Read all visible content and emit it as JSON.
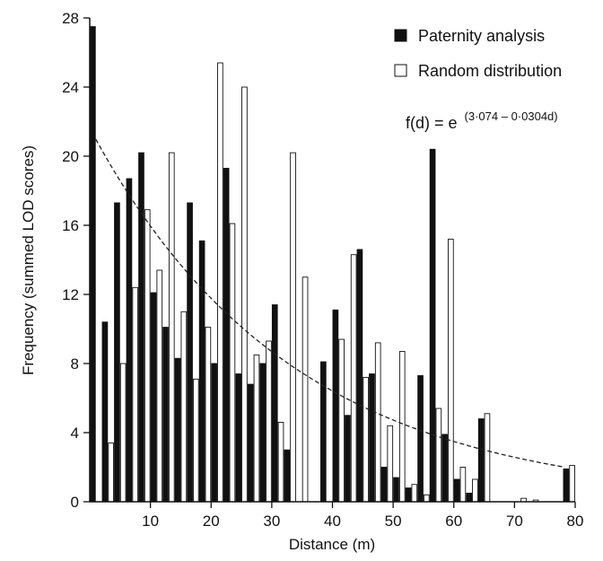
{
  "chart_data": {
    "type": "bar",
    "xlabel": "Distance (m)",
    "ylabel": "Frequency (summed LOD scores)",
    "xlim": [
      0,
      80
    ],
    "ylim": [
      0,
      28
    ],
    "xticks": [
      10,
      20,
      30,
      40,
      50,
      60,
      70,
      80
    ],
    "yticks": [
      0,
      4,
      8,
      12,
      16,
      20,
      24,
      28
    ],
    "bin_width": 2,
    "bin_centers": [
      1,
      3,
      5,
      7,
      9,
      11,
      13,
      15,
      17,
      19,
      21,
      23,
      25,
      27,
      29,
      31,
      33,
      35,
      37,
      39,
      41,
      43,
      45,
      47,
      49,
      51,
      53,
      55,
      57,
      59,
      61,
      63,
      65,
      67,
      69,
      71,
      73,
      75,
      77,
      79
    ],
    "series": [
      {
        "name": "Paternity analysis",
        "style": "filled",
        "color": "#111111",
        "values": [
          27.5,
          10.4,
          17.3,
          18.7,
          20.2,
          12.1,
          10.1,
          8.3,
          17.3,
          15.1,
          8.0,
          19.3,
          7.4,
          6.8,
          8.0,
          11.4,
          3.0,
          0,
          0,
          8.1,
          11.1,
          5.0,
          14.6,
          7.4,
          2.0,
          1.4,
          0.8,
          7.3,
          20.4,
          3.9,
          1.3,
          0.5,
          4.8,
          0,
          0,
          0,
          0,
          0,
          0,
          1.9
        ]
      },
      {
        "name": "Random distribution",
        "style": "open",
        "color": "#ffffff",
        "values": [
          0,
          3.4,
          8.0,
          12.4,
          16.9,
          13.4,
          20.2,
          11.0,
          7.1,
          10.1,
          25.4,
          16.1,
          24.0,
          8.5,
          9.3,
          4.6,
          20.2,
          13.0,
          0,
          0,
          9.4,
          14.3,
          7.2,
          9.2,
          4.4,
          8.7,
          1.0,
          0.4,
          5.4,
          15.2,
          2.0,
          1.3,
          5.1,
          0,
          0,
          0.2,
          0.1,
          0,
          0,
          2.1
        ]
      }
    ],
    "fit": {
      "label_prefix": "f(d) = e",
      "label_exponent": "(3·074 – 0·0304d)",
      "a": 3.074,
      "b": 0.0304,
      "x_range": [
        1,
        78
      ],
      "style": "dashed"
    },
    "legend_position": "top-right",
    "grid": false
  }
}
